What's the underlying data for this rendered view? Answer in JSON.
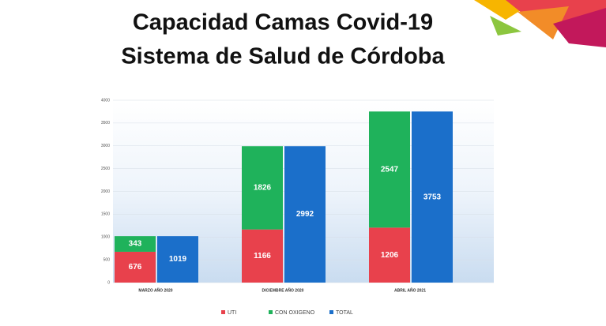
{
  "chart_data": {
    "type": "bar",
    "title": "Capacidad Camas Covid-19",
    "subtitle": "Sistema de Salud de Córdoba",
    "categories": [
      "MARZO AÑO 2020",
      "DICIEMBRE AÑO 2020",
      "ABRIL AÑO 2021"
    ],
    "series": [
      {
        "name": "UTI",
        "color": "#e8414c",
        "values": [
          676,
          1166,
          1206
        ]
      },
      {
        "name": "CON OXIGENO",
        "color": "#1fb25b",
        "values": [
          343,
          1826,
          2547
        ]
      },
      {
        "name": "TOTAL",
        "color": "#1b6fca",
        "values": [
          1019,
          2992,
          3753
        ]
      }
    ],
    "ylim": [
      0,
      4000
    ],
    "yticks": [
      0,
      500,
      1000,
      1500,
      2000,
      2500,
      3000,
      3500,
      4000
    ],
    "grid": true
  }
}
